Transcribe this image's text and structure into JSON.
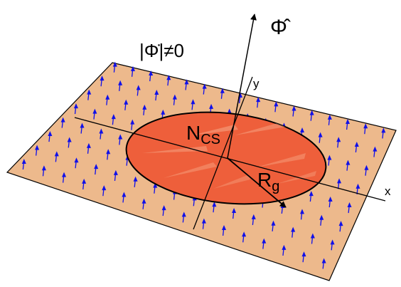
{
  "labels": {
    "field_norm": "|Φ̇|≠0",
    "phi_hat": "Φ̂",
    "y_axis": "y",
    "x_axis": "x",
    "ncs_main": "N",
    "ncs_sub": "CS",
    "rg_main": "R",
    "rg_sub": "g"
  },
  "colors": {
    "plane_fill": "#EDB98C",
    "plane_edge": "#000000",
    "disk_fill": "#EE5F3B",
    "disk_highlight": "#F6A888",
    "disk_edge": "#000000",
    "field_arrow": "#1010E8",
    "axis": "#000000"
  }
}
